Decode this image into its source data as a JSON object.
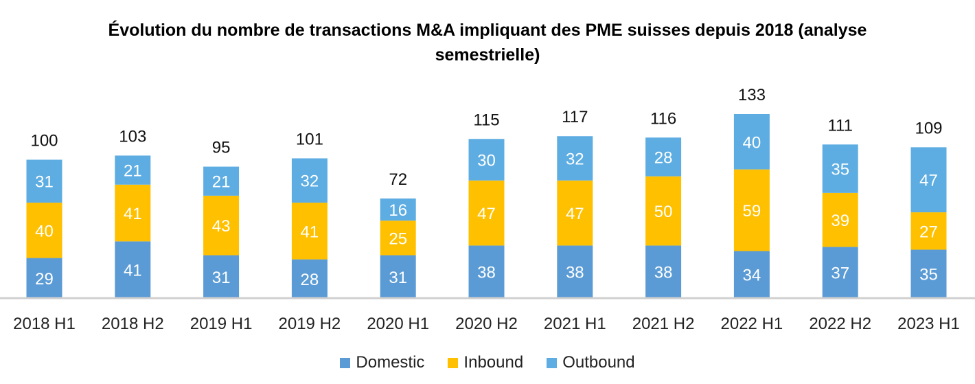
{
  "chart_data": {
    "type": "bar",
    "stacked": true,
    "title": "Évolution du nombre de transactions M&A impliquant des PME suisses depuis 2018 (analyse semestrielle)",
    "xlabel": "",
    "ylabel": "",
    "categories": [
      "2018 H1",
      "2018 H2",
      "2019 H1",
      "2019 H2",
      "2020 H1",
      "2020 H2",
      "2021 H1",
      "2021 H2",
      "2022 H1",
      "2022 H2",
      "2023 H1"
    ],
    "series": [
      {
        "name": "Domestic",
        "color": "#5b9bd5",
        "values": [
          29,
          41,
          31,
          28,
          31,
          38,
          38,
          38,
          34,
          37,
          35
        ]
      },
      {
        "name": "Inbound",
        "color": "#ffc000",
        "values": [
          40,
          41,
          43,
          41,
          25,
          47,
          47,
          50,
          59,
          39,
          27
        ]
      },
      {
        "name": "Outbound",
        "color": "#5dade2",
        "values": [
          31,
          21,
          21,
          32,
          16,
          30,
          32,
          28,
          40,
          35,
          47
        ]
      }
    ],
    "totals": [
      100,
      103,
      95,
      101,
      72,
      115,
      117,
      116,
      133,
      111,
      109
    ],
    "ylim": [
      0,
      133
    ],
    "grid": false,
    "legend": "bottom"
  }
}
